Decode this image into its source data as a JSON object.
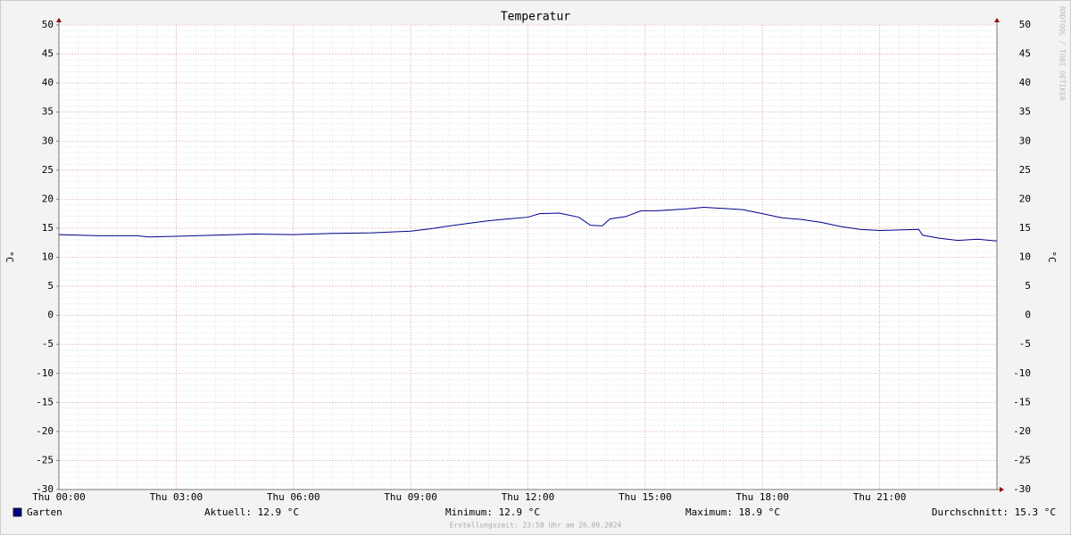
{
  "chart_data": {
    "type": "line",
    "title": "Temperatur",
    "ylabel": "°C",
    "y2label": "°C",
    "x": [
      0,
      1,
      2,
      2.3,
      3,
      4,
      5,
      6,
      7,
      8,
      9,
      9.5,
      10,
      11,
      11.5,
      12,
      12.3,
      12.8,
      13.3,
      13.6,
      13.9,
      14.1,
      14.5,
      14.9,
      15.3,
      16,
      16.5,
      17,
      17.5,
      18,
      18.5,
      19,
      19.5,
      20,
      20.5,
      21,
      21.5,
      22,
      22.1,
      22.5,
      23,
      23.5,
      24
    ],
    "series": [
      {
        "name": "Garten",
        "color": "#00008b",
        "values": [
          13.9,
          13.7,
          13.7,
          13.5,
          13.6,
          13.8,
          14.0,
          13.9,
          14.1,
          14.2,
          14.5,
          14.9,
          15.4,
          16.3,
          16.6,
          16.9,
          17.5,
          17.6,
          16.9,
          15.5,
          15.4,
          16.6,
          17.0,
          18.0,
          18.0,
          18.3,
          18.6,
          18.4,
          18.2,
          17.5,
          16.8,
          16.5,
          16.0,
          15.3,
          14.8,
          14.6,
          14.7,
          14.8,
          13.8,
          13.3,
          12.9,
          13.1,
          12.8
        ]
      }
    ],
    "xlim": [
      0,
      24
    ],
    "xticks": [
      {
        "value": 0,
        "label": "Thu 00:00"
      },
      {
        "value": 3,
        "label": "Thu 03:00"
      },
      {
        "value": 6,
        "label": "Thu 06:00"
      },
      {
        "value": 9,
        "label": "Thu 09:00"
      },
      {
        "value": 12,
        "label": "Thu 12:00"
      },
      {
        "value": 15,
        "label": "Thu 15:00"
      },
      {
        "value": 18,
        "label": "Thu 18:00"
      },
      {
        "value": 21,
        "label": "Thu 21:00"
      }
    ],
    "ylim": [
      -30,
      50
    ],
    "yticks": [
      -30,
      -25,
      -20,
      -15,
      -10,
      -5,
      0,
      5,
      10,
      15,
      20,
      25,
      30,
      35,
      40,
      45,
      50
    ],
    "grid": true,
    "stats": [
      "Aktuell: 12.9 °C",
      "Minimum: 12.9 °C",
      "Maximum: 18.9 °C",
      "Durchschnitt: 15.3 °C"
    ],
    "watermark": "RRDTOOL / TOBI OETIKER",
    "footer": "Erstellungszeit: 23:58 Uhr am 26.09.2024"
  }
}
